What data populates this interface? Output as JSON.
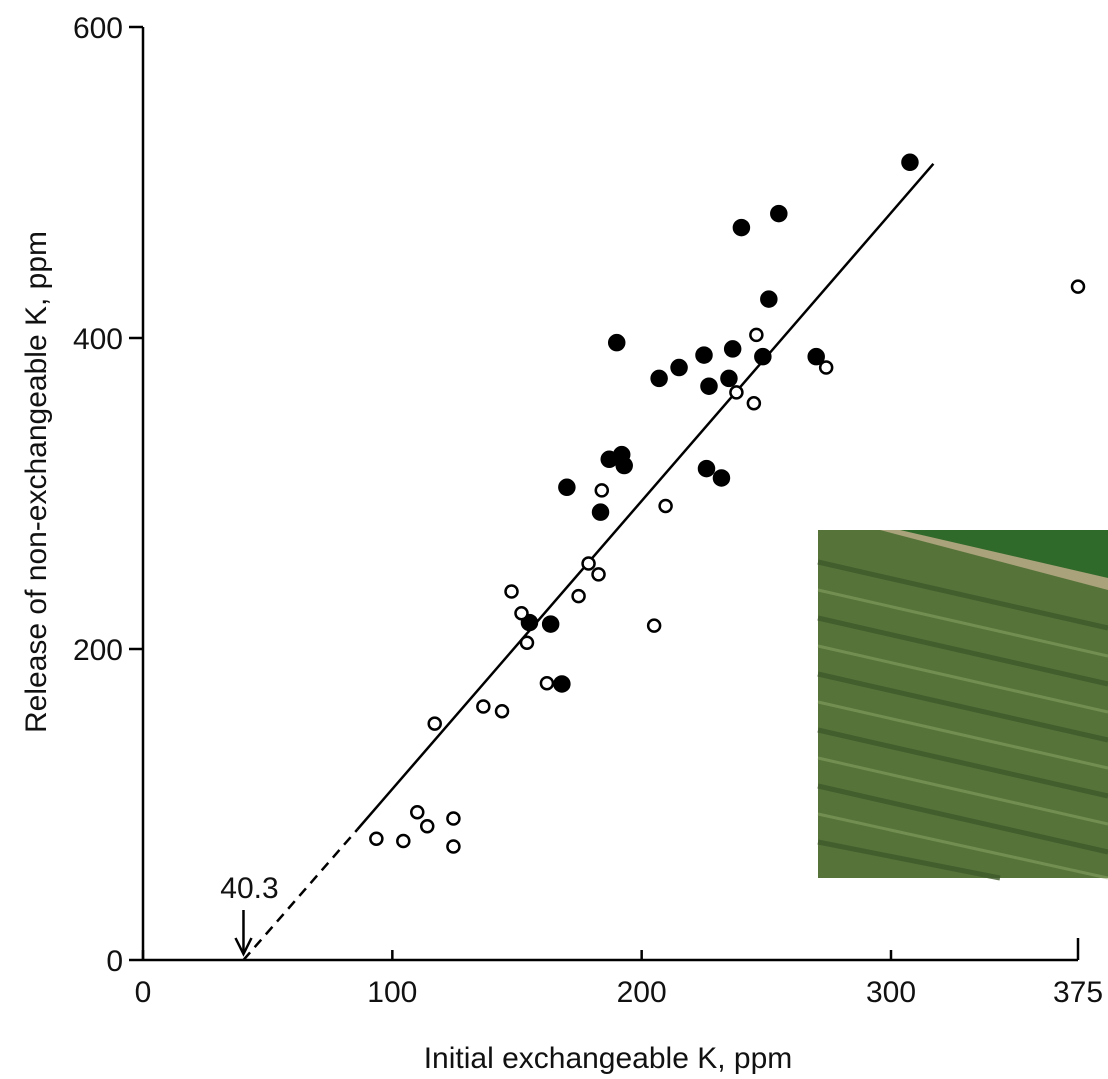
{
  "chart_data": {
    "type": "scatter",
    "x_label": "Initial exchangeable K, ppm",
    "y_label": "Release of non-exchangeable K, ppm",
    "xlim": [
      0,
      375
    ],
    "ylim": [
      0,
      600
    ],
    "xticks": [
      0,
      100,
      200,
      300,
      375
    ],
    "yticks": [
      0,
      200,
      400,
      600
    ],
    "x_intercept": 40.3,
    "fit": {
      "dashed": {
        "x": [
          40.3,
          86
        ],
        "y": [
          0,
          84
        ]
      },
      "solid": {
        "x": [
          86,
          317
        ],
        "y": [
          84,
          512
        ]
      }
    },
    "series": [
      {
        "marker": "filled",
        "color": "#000000",
        "x": [
          307.6,
          240,
          255,
          251,
          190,
          207,
          215,
          225,
          236.5,
          248.6,
          270,
          227,
          235,
          187,
          192,
          193,
          226,
          232,
          170,
          183.5,
          155,
          163.5,
          168
        ],
        "values": [
          513,
          471,
          480,
          425,
          397,
          374,
          381,
          389,
          393,
          388,
          388,
          369,
          374,
          322,
          325,
          318,
          316,
          310,
          304,
          288,
          217,
          216,
          177.5
        ]
      },
      {
        "marker": "open",
        "color": "#000000",
        "x": [
          375,
          246,
          274,
          238,
          245,
          184,
          209.6,
          178.7,
          182.7,
          174.7,
          147.8,
          151.8,
          154,
          205,
          162,
          136.5,
          144,
          117,
          110,
          114,
          124.5,
          124.5,
          93.6,
          104.4
        ],
        "values": [
          433,
          402,
          381,
          365,
          358,
          302,
          292,
          255,
          248,
          234,
          237,
          223,
          204,
          215,
          178,
          163,
          160,
          152,
          95,
          86,
          91,
          73,
          78,
          76.5
        ]
      }
    ]
  }
}
